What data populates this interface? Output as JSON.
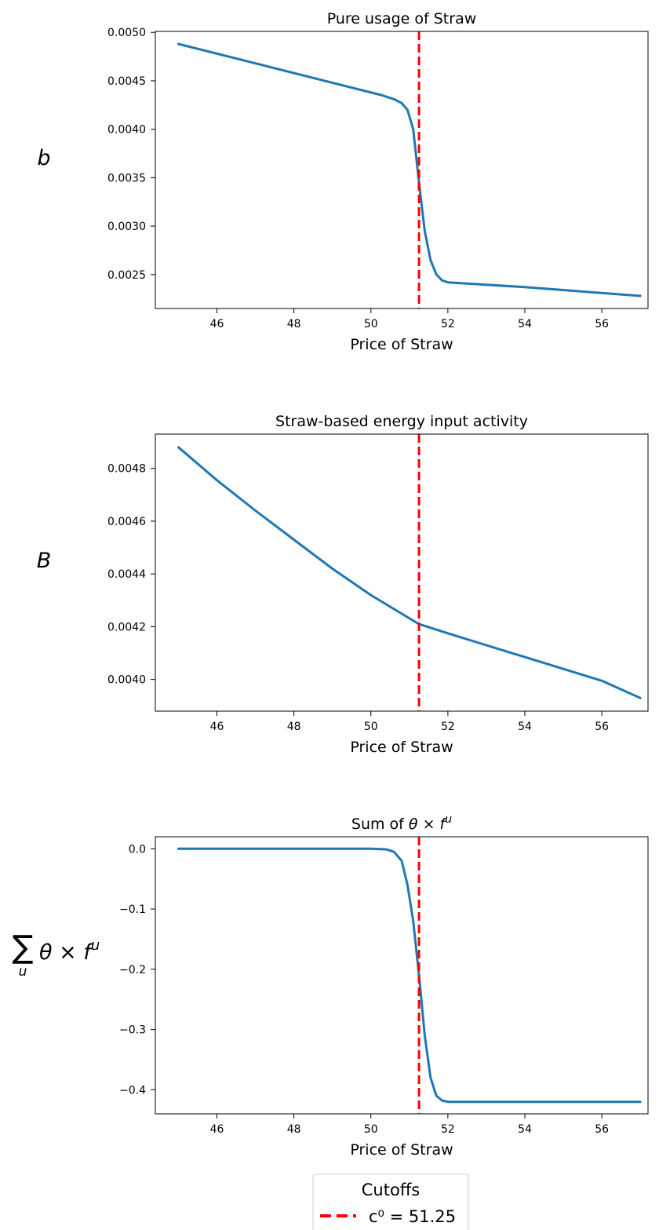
{
  "chart_data": [
    {
      "type": "line",
      "title": "Pure usage of Straw",
      "xlabel": "Price of Straw",
      "ylabel": "b",
      "xlim": [
        44.4,
        57.2
      ],
      "ylim": [
        0.00215,
        0.00501
      ],
      "xticks": [
        46,
        48,
        50,
        52,
        54,
        56
      ],
      "yticks": [
        0.0025,
        0.003,
        0.0035,
        0.004,
        0.0045,
        0.005
      ],
      "ytick_labels": [
        "0.0025",
        "0.0030",
        "0.0035",
        "0.0040",
        "0.0045",
        "0.0050"
      ],
      "series": [
        {
          "color": "#1f77b4",
          "x": [
            45.0,
            47.0,
            49.0,
            50.3,
            50.6,
            50.8,
            50.95,
            51.1,
            51.25,
            51.4,
            51.55,
            51.7,
            51.85,
            52.0,
            54.0,
            57.0
          ],
          "y": [
            0.00488,
            0.00468,
            0.00448,
            0.00435,
            0.00431,
            0.00427,
            0.0042,
            0.004,
            0.00345,
            0.00295,
            0.00265,
            0.0025,
            0.00244,
            0.00242,
            0.00237,
            0.00228
          ]
        }
      ],
      "vline": {
        "x": 51.25,
        "color": "#ff0000",
        "style": "dashed"
      }
    },
    {
      "type": "line",
      "title": "Straw-based energy input activity",
      "xlabel": "Price of Straw",
      "ylabel": "B",
      "xlim": [
        44.4,
        57.2
      ],
      "ylim": [
        0.00388,
        0.00493
      ],
      "xticks": [
        46,
        48,
        50,
        52,
        54,
        56
      ],
      "yticks": [
        0.004,
        0.0042,
        0.0044,
        0.0046,
        0.0048
      ],
      "ytick_labels": [
        "0.0040",
        "0.0042",
        "0.0044",
        "0.0046",
        "0.0048"
      ],
      "series": [
        {
          "color": "#1f77b4",
          "x": [
            45.0,
            46.0,
            47.0,
            48.0,
            49.0,
            50.0,
            51.25,
            52.0,
            53.0,
            54.0,
            55.0,
            56.0,
            57.0
          ],
          "y": [
            0.00488,
            0.004755,
            0.00464,
            0.00453,
            0.00442,
            0.00432,
            0.00421,
            0.004175,
            0.00413,
            0.004085,
            0.00404,
            0.003995,
            0.00393
          ]
        }
      ],
      "vline": {
        "x": 51.25,
        "color": "#ff0000",
        "style": "dashed"
      }
    },
    {
      "type": "line",
      "title": "Sum of θ × f^u",
      "xlabel": "Price of Straw",
      "ylabel": "∑u θ × f^u",
      "xlim": [
        44.4,
        57.2
      ],
      "ylim": [
        -0.44,
        0.02
      ],
      "xticks": [
        46,
        48,
        50,
        52,
        54,
        56
      ],
      "yticks": [
        0.0,
        -0.1,
        -0.2,
        -0.3,
        -0.4
      ],
      "ytick_labels": [
        "0.0",
        "−0.1",
        "−0.2",
        "−0.3",
        "−0.4"
      ],
      "series": [
        {
          "color": "#1f77b4",
          "x": [
            45.0,
            50.0,
            50.4,
            50.6,
            50.8,
            50.95,
            51.1,
            51.25,
            51.4,
            51.55,
            51.7,
            51.85,
            52.0,
            54.0,
            57.0
          ],
          "y": [
            0.0,
            0.0,
            -0.001,
            -0.005,
            -0.02,
            -0.06,
            -0.12,
            -0.21,
            -0.31,
            -0.38,
            -0.41,
            -0.418,
            -0.42,
            -0.42,
            -0.42
          ]
        }
      ],
      "vline": {
        "x": 51.25,
        "color": "#ff0000",
        "style": "dashed"
      }
    }
  ],
  "legend": {
    "title": "Cutoffs",
    "entries": [
      {
        "label": "c⁰ = 51.25",
        "color": "#ff0000",
        "style": "dashed"
      }
    ]
  }
}
